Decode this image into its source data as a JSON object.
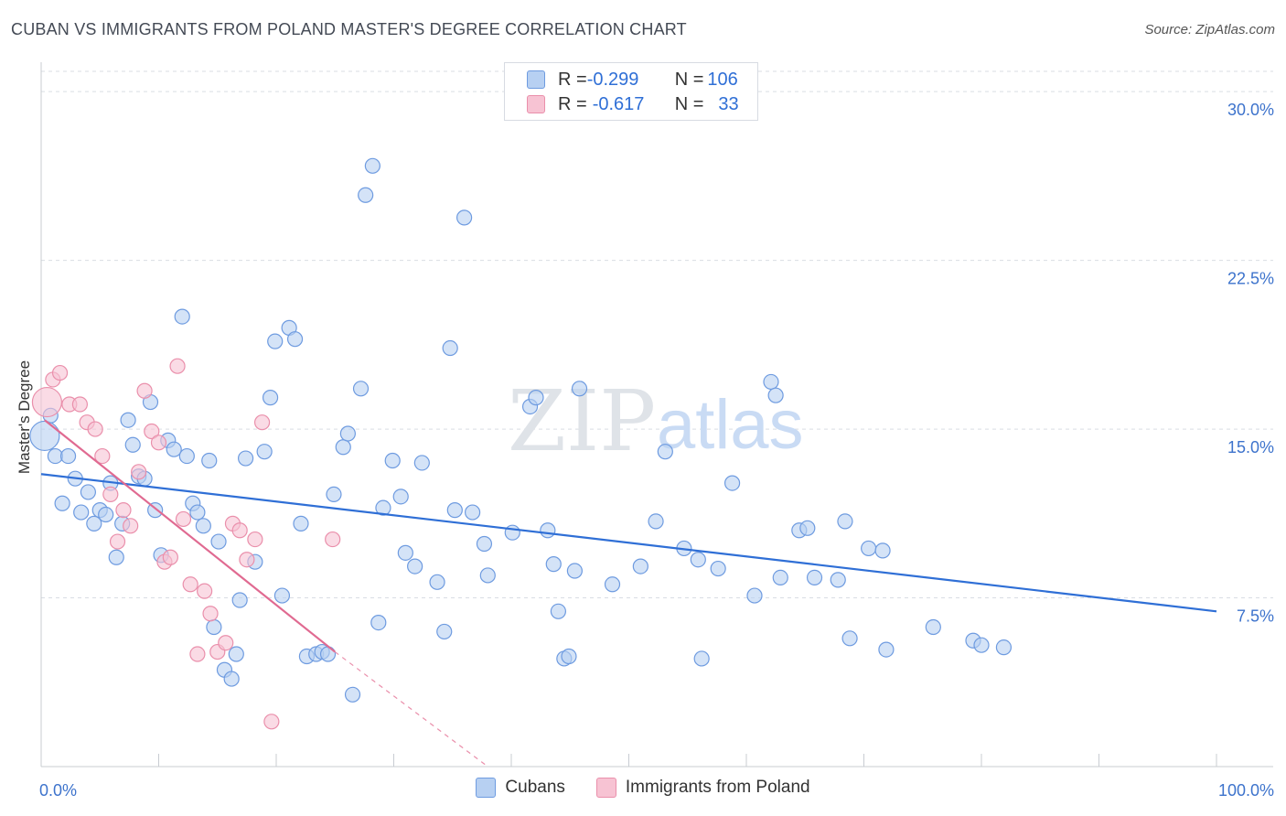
{
  "title": "CUBAN VS IMMIGRANTS FROM POLAND MASTER'S DEGREE CORRELATION CHART",
  "source": "Source: ZipAtlas.com",
  "watermark": {
    "zip": "ZIP",
    "atlas": "atlas"
  },
  "colors": {
    "blue_fill": "#b7d0f2",
    "blue_stroke": "#6e9be0",
    "blue_line": "#2f6fd6",
    "pink_fill": "#f7c3d3",
    "pink_stroke": "#ea8fab",
    "pink_line": "#e06a91",
    "axis_text": "#3d73cc",
    "grid": "#d9dde3"
  },
  "correlation_legend": {
    "rows": [
      {
        "r_label": "R = ",
        "r_value": "-0.299",
        "n_label": "N = ",
        "n_value": "106",
        "color": "#b7d0f2"
      },
      {
        "r_label": "R = ",
        "r_value": "-0.617",
        "n_label": "N = ",
        "n_value": "33",
        "color": "#f7c3d3"
      }
    ]
  },
  "chart_data": {
    "type": "scatter",
    "title": "CUBAN VS IMMIGRANTS FROM POLAND MASTER'S DEGREE CORRELATION CHART",
    "xlabel": "",
    "ylabel": "Master's Degree",
    "xlim": [
      0,
      100
    ],
    "ylim": [
      0,
      30.9
    ],
    "x_tick_labels": [
      "0.0%",
      "100.0%"
    ],
    "y_ticks": [
      7.5,
      15.0,
      22.5,
      30.0
    ],
    "y_tick_labels": [
      "7.5%",
      "15.0%",
      "22.5%",
      "30.0%"
    ],
    "grid": true,
    "legend": "bottom-center",
    "series": [
      {
        "name": "Cubans",
        "color": "#b7d0f2",
        "trend": {
          "x": [
            0,
            100
          ],
          "y": [
            13.0,
            6.9
          ]
        },
        "points": [
          [
            0.3,
            14.7
          ],
          [
            0.8,
            15.6
          ],
          [
            1.2,
            13.8
          ],
          [
            1.8,
            11.7
          ],
          [
            2.3,
            13.8
          ],
          [
            2.9,
            12.8
          ],
          [
            3.4,
            11.3
          ],
          [
            4.0,
            12.2
          ],
          [
            4.5,
            10.8
          ],
          [
            5.0,
            11.4
          ],
          [
            5.5,
            11.2
          ],
          [
            5.9,
            12.6
          ],
          [
            6.4,
            9.3
          ],
          [
            6.9,
            10.8
          ],
          [
            7.4,
            15.4
          ],
          [
            7.8,
            14.3
          ],
          [
            8.3,
            12.9
          ],
          [
            8.8,
            12.8
          ],
          [
            9.3,
            16.2
          ],
          [
            9.7,
            11.4
          ],
          [
            10.2,
            9.4
          ],
          [
            10.8,
            14.5
          ],
          [
            11.3,
            14.1
          ],
          [
            12.0,
            20.0
          ],
          [
            12.4,
            13.8
          ],
          [
            12.9,
            11.7
          ],
          [
            13.3,
            11.3
          ],
          [
            13.8,
            10.7
          ],
          [
            14.3,
            13.6
          ],
          [
            14.7,
            6.2
          ],
          [
            15.1,
            10.0
          ],
          [
            15.6,
            4.3
          ],
          [
            16.2,
            3.9
          ],
          [
            16.6,
            5.0
          ],
          [
            16.9,
            7.4
          ],
          [
            17.4,
            13.7
          ],
          [
            18.2,
            9.1
          ],
          [
            19.0,
            14.0
          ],
          [
            19.5,
            16.4
          ],
          [
            19.9,
            18.9
          ],
          [
            20.5,
            7.6
          ],
          [
            21.1,
            19.5
          ],
          [
            21.6,
            19.0
          ],
          [
            22.1,
            10.8
          ],
          [
            22.6,
            4.9
          ],
          [
            23.4,
            5.0
          ],
          [
            23.9,
            5.1
          ],
          [
            24.4,
            5.0
          ],
          [
            24.9,
            12.1
          ],
          [
            25.7,
            14.2
          ],
          [
            26.1,
            14.8
          ],
          [
            26.5,
            3.2
          ],
          [
            27.2,
            16.8
          ],
          [
            27.6,
            25.4
          ],
          [
            28.2,
            26.7
          ],
          [
            28.7,
            6.4
          ],
          [
            29.1,
            11.5
          ],
          [
            29.9,
            13.6
          ],
          [
            30.6,
            12.0
          ],
          [
            31.0,
            9.5
          ],
          [
            31.8,
            8.9
          ],
          [
            32.4,
            13.5
          ],
          [
            33.7,
            8.2
          ],
          [
            34.3,
            6.0
          ],
          [
            34.8,
            18.6
          ],
          [
            35.2,
            11.4
          ],
          [
            36.0,
            24.4
          ],
          [
            36.7,
            11.3
          ],
          [
            37.7,
            9.9
          ],
          [
            38.0,
            8.5
          ],
          [
            40.1,
            10.4
          ],
          [
            41.6,
            16.0
          ],
          [
            42.1,
            16.4
          ],
          [
            43.1,
            10.5
          ],
          [
            43.6,
            9.0
          ],
          [
            44.0,
            6.9
          ],
          [
            44.5,
            4.8
          ],
          [
            44.9,
            4.9
          ],
          [
            45.4,
            8.7
          ],
          [
            45.8,
            16.8
          ],
          [
            48.6,
            8.1
          ],
          [
            51.0,
            8.9
          ],
          [
            52.3,
            10.9
          ],
          [
            53.1,
            14.0
          ],
          [
            54.7,
            9.7
          ],
          [
            55.9,
            9.2
          ],
          [
            56.2,
            4.8
          ],
          [
            57.6,
            8.8
          ],
          [
            58.8,
            12.6
          ],
          [
            60.7,
            7.6
          ],
          [
            62.1,
            17.1
          ],
          [
            62.5,
            16.5
          ],
          [
            62.9,
            8.4
          ],
          [
            64.5,
            10.5
          ],
          [
            65.2,
            10.6
          ],
          [
            65.8,
            8.4
          ],
          [
            67.8,
            8.3
          ],
          [
            68.4,
            10.9
          ],
          [
            68.8,
            5.7
          ],
          [
            70.4,
            9.7
          ],
          [
            71.6,
            9.6
          ],
          [
            71.9,
            5.2
          ],
          [
            75.9,
            6.2
          ],
          [
            79.3,
            5.6
          ],
          [
            80.0,
            5.4
          ],
          [
            81.9,
            5.3
          ]
        ]
      },
      {
        "name": "Immigrants from Poland",
        "color": "#f7c3d3",
        "trend": {
          "x": [
            0.3,
            25.0
          ],
          "y": [
            15.4,
            5.1
          ]
        },
        "trend_dashed": {
          "x": [
            25.0,
            38.0
          ],
          "y": [
            5.1,
            0.0
          ]
        },
        "points": [
          [
            0.5,
            16.2
          ],
          [
            1.0,
            17.2
          ],
          [
            1.6,
            17.5
          ],
          [
            2.4,
            16.1
          ],
          [
            3.3,
            16.1
          ],
          [
            3.9,
            15.3
          ],
          [
            4.6,
            15.0
          ],
          [
            5.2,
            13.8
          ],
          [
            5.9,
            12.1
          ],
          [
            6.5,
            10.0
          ],
          [
            7.0,
            11.4
          ],
          [
            7.6,
            10.7
          ],
          [
            8.3,
            13.1
          ],
          [
            8.8,
            16.7
          ],
          [
            9.4,
            14.9
          ],
          [
            10.0,
            14.4
          ],
          [
            10.5,
            9.1
          ],
          [
            11.0,
            9.3
          ],
          [
            11.6,
            17.8
          ],
          [
            12.1,
            11.0
          ],
          [
            12.7,
            8.1
          ],
          [
            13.3,
            5.0
          ],
          [
            13.9,
            7.8
          ],
          [
            14.4,
            6.8
          ],
          [
            15.0,
            5.1
          ],
          [
            15.7,
            5.5
          ],
          [
            16.3,
            10.8
          ],
          [
            16.9,
            10.5
          ],
          [
            17.5,
            9.2
          ],
          [
            18.2,
            10.1
          ],
          [
            18.8,
            15.3
          ],
          [
            19.6,
            2.0
          ],
          [
            24.8,
            10.1
          ]
        ]
      }
    ]
  }
}
